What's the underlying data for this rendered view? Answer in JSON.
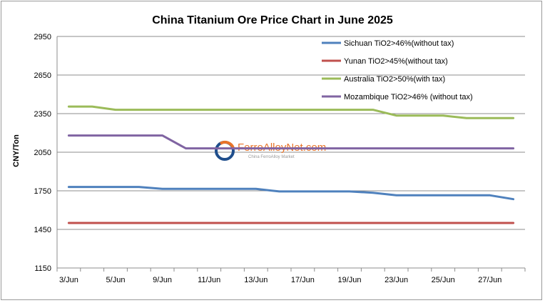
{
  "chart_data": {
    "type": "line",
    "title": "China Titanium Ore Price Chart in June 2025",
    "xlabel": "",
    "ylabel": "CNY/Ton",
    "ylim": [
      1150,
      2950
    ],
    "yticks": [
      1150,
      1450,
      1750,
      2050,
      2350,
      2650,
      2950
    ],
    "grid": true,
    "legend": "top-right",
    "x": [
      "3/Jun",
      "4/Jun",
      "5/Jun",
      "6/Jun",
      "9/Jun",
      "10/Jun",
      "11/Jun",
      "12/Jun",
      "13/Jun",
      "16/Jun",
      "17/Jun",
      "18/Jun",
      "19/Jun",
      "20/Jun",
      "23/Jun",
      "24/Jun",
      "25/Jun",
      "26/Jun",
      "27/Jun",
      "30/Jun"
    ],
    "x_tick_labels": [
      "3/Jun",
      "5/Jun",
      "9/Jun",
      "11/Jun",
      "13/Jun",
      "17/Jun",
      "19/Jun",
      "23/Jun",
      "25/Jun",
      "27/Jun"
    ],
    "series": [
      {
        "name": "Sichuan TiO2>46%(without tax)",
        "color": "#4f81bd",
        "values": [
          1780,
          1780,
          1780,
          1780,
          1765,
          1765,
          1765,
          1765,
          1765,
          1745,
          1745,
          1745,
          1745,
          1735,
          1715,
          1715,
          1715,
          1715,
          1715,
          1685
        ]
      },
      {
        "name": "Yunan TiO2>45%(without tax)",
        "color": "#c0504d",
        "values": [
          1500,
          1500,
          1500,
          1500,
          1500,
          1500,
          1500,
          1500,
          1500,
          1500,
          1500,
          1500,
          1500,
          1500,
          1500,
          1500,
          1500,
          1500,
          1500,
          1500
        ]
      },
      {
        "name": "Australia TiO2>50%(with tax)",
        "color": "#9bbb59",
        "values": [
          2405,
          2405,
          2380,
          2380,
          2380,
          2380,
          2380,
          2380,
          2380,
          2380,
          2380,
          2380,
          2380,
          2380,
          2335,
          2335,
          2335,
          2315,
          2315,
          2315
        ]
      },
      {
        "name": "Mozambique TiO2>46% (without tax)",
        "color": "#8064a2",
        "values": [
          2180,
          2180,
          2180,
          2180,
          2180,
          2080,
          2080,
          2080,
          2080,
          2080,
          2080,
          2080,
          2080,
          2080,
          2080,
          2080,
          2080,
          2080,
          2080,
          2080
        ]
      }
    ]
  },
  "watermark": {
    "name": "FerroAlloyNet.com",
    "tagline": "China FerroAlloy Market",
    "colors": {
      "ring_dark": "#1f4e8c",
      "ring_orange": "#e8742a"
    }
  }
}
